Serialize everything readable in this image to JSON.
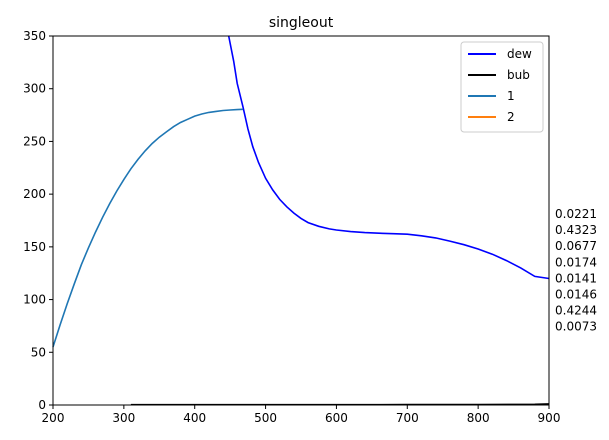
{
  "chart_data": {
    "type": "line",
    "title": "singleout",
    "xlabel": "",
    "ylabel": "",
    "xlim": [
      200,
      900
    ],
    "ylim": [
      0,
      350
    ],
    "grid": false,
    "legend_position": "top-right",
    "xticks": [
      200,
      300,
      400,
      500,
      600,
      700,
      800,
      900
    ],
    "yticks": [
      0,
      50,
      100,
      150,
      200,
      250,
      300,
      350
    ],
    "series": [
      {
        "name": "dew",
        "color": "#0000ff",
        "x": [
          448,
          455,
          460,
          468,
          475,
          482,
          490,
          500,
          510,
          520,
          530,
          540,
          550,
          560,
          575,
          590,
          600,
          620,
          640,
          660,
          680,
          700,
          720,
          740,
          760,
          780,
          800,
          820,
          840,
          860,
          880,
          900
        ],
        "y": [
          350,
          326,
          305,
          283,
          262,
          245,
          230,
          215,
          204,
          195,
          188,
          182,
          177,
          173,
          169.5,
          167,
          166,
          164.5,
          163.5,
          163,
          162.5,
          162,
          160.5,
          158.5,
          155.5,
          152,
          148,
          143,
          137,
          130,
          122,
          120
        ]
      },
      {
        "name": "bub",
        "color": "#000000",
        "x": [
          310,
          400,
          500,
          600,
          700,
          800,
          850,
          880,
          900
        ],
        "y": [
          0.3,
          0.3,
          0.3,
          0.3,
          0.35,
          0.45,
          0.55,
          0.7,
          1.0
        ]
      },
      {
        "name": "1",
        "color": "#1f77b4",
        "x": [
          200,
          210,
          220,
          230,
          240,
          250,
          260,
          270,
          280,
          290,
          300,
          310,
          320,
          330,
          340,
          350,
          360,
          370,
          380,
          390,
          400,
          410,
          420,
          430,
          440,
          450,
          460,
          468
        ],
        "y": [
          55,
          76,
          96,
          115,
          133,
          149,
          164,
          178,
          191,
          203,
          214,
          224,
          233,
          241,
          248,
          254,
          259,
          264,
          268,
          271,
          274,
          276,
          277.5,
          278.5,
          279.3,
          279.8,
          280.2,
          280.5
        ]
      },
      {
        "name": "2",
        "color": "#ff7f0e",
        "x": [],
        "y": []
      }
    ],
    "annotations": [
      "0.0221",
      "0.4323",
      "0.0677",
      "0.0174",
      "0.0141",
      "0.0146",
      "0.4244",
      "0.0073"
    ]
  }
}
